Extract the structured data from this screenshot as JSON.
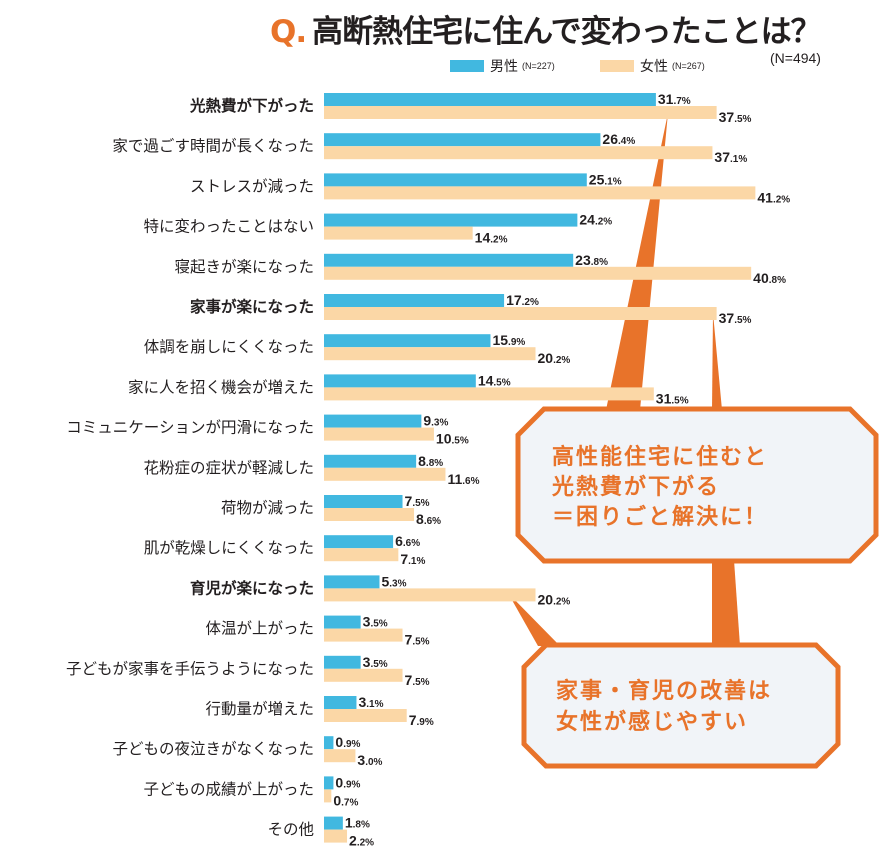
{
  "header": {
    "q_mark": "Q.",
    "title": "高断熱住宅に住んで変わったことは？",
    "total_n": "(N=494)"
  },
  "legend": {
    "male_label": "男性",
    "male_n": "(N=227)",
    "female_label": "女性",
    "female_n": "(N=267)"
  },
  "colors": {
    "male": "#41b8e0",
    "female": "#fbd7a6",
    "accent": "#e8732a",
    "callout_bg": "#f1f4f8"
  },
  "callouts": [
    {
      "lines": [
        "高性能住宅に住むと",
        "光熱費が下がる",
        "＝困りごと解決に！"
      ],
      "points_to": [
        "光熱費が下がった",
        "家事が楽になった"
      ]
    },
    {
      "lines": [
        "家事・育児の改善は",
        "女性が感じやすい"
      ],
      "points_to": [
        "育児が楽になった",
        "家事が楽になった"
      ]
    }
  ],
  "chart_data": {
    "type": "bar",
    "orientation": "horizontal",
    "title": "Q. 高断熱住宅に住んで変わったことは？",
    "subtitle": "(N=494)",
    "xlabel": "",
    "ylabel": "",
    "unit": "%",
    "xlim": [
      0,
      45
    ],
    "grid": false,
    "legend_position": "top",
    "categories": [
      "光熱費が下がった",
      "家で過ごす時間が長くなった",
      "ストレスが減った",
      "特に変わったことはない",
      "寝起きが楽になった",
      "家事が楽になった",
      "体調を崩しにくくなった",
      "家に人を招く機会が増えた",
      "コミュニケーションが円滑になった",
      "花粉症の症状が軽減した",
      "荷物が減った",
      "肌が乾燥しにくくなった",
      "育児が楽になった",
      "体温が上がった",
      "子どもが家事を手伝うようになった",
      "行動量が増えた",
      "子どもの夜泣きがなくなった",
      "子どもの成績が上がった",
      "その他"
    ],
    "bold_categories": [
      "光熱費が下がった",
      "家事が楽になった",
      "育児が楽になった"
    ],
    "series": [
      {
        "name": "男性 (N=227)",
        "values": [
          31.7,
          26.4,
          25.1,
          24.2,
          23.8,
          17.2,
          15.9,
          14.5,
          9.3,
          8.8,
          7.5,
          6.6,
          5.3,
          3.5,
          3.5,
          3.1,
          0.9,
          0.9,
          1.8
        ]
      },
      {
        "name": "女性 (N=267)",
        "values": [
          37.5,
          37.1,
          41.2,
          14.2,
          40.8,
          37.5,
          20.2,
          31.5,
          10.5,
          11.6,
          8.6,
          7.1,
          20.2,
          7.5,
          7.5,
          7.9,
          3.0,
          0.7,
          2.2
        ]
      }
    ]
  }
}
